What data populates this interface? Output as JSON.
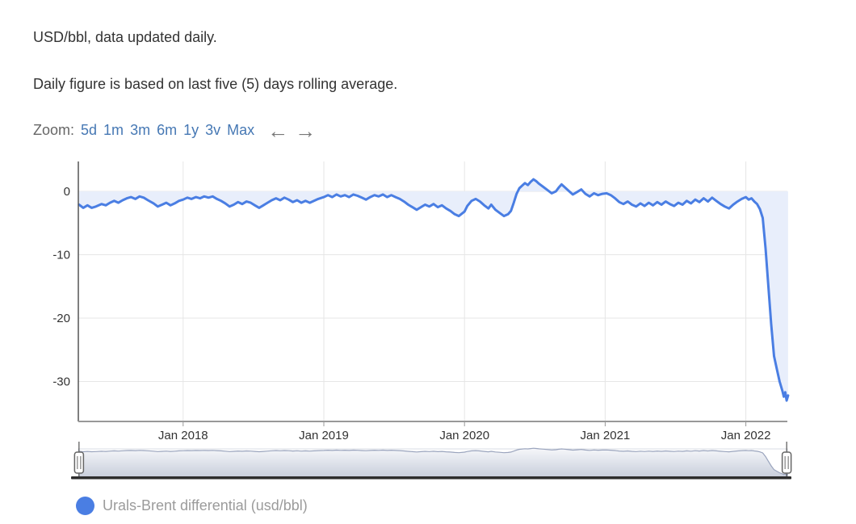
{
  "header": {
    "title": "USD/bbl, data updated daily.",
    "subtitle": "Daily figure is based on last five (5) days rolling average."
  },
  "range_selector": {
    "label": "Zoom:",
    "buttons": [
      "5d",
      "1m",
      "3m",
      "6m",
      "1y",
      "3v",
      "Max"
    ],
    "left_arrow": "←",
    "right_arrow": "→"
  },
  "legend": {
    "label": "Urals-Brent differential (usd/bbl)",
    "marker_color": "#4a7ee3"
  },
  "colors": {
    "line": "#4a7ee3",
    "area_fill": "#e8eefb",
    "grid": "#e6e6e6",
    "axis_x": "#999999",
    "axis_y": "#555555",
    "tick_text": "#333333",
    "navigator_line": "#9aa4bd",
    "navigator_fill_top": "#f6f7fa",
    "navigator_fill_bottom": "#c9cfdc",
    "navigator_bar": "#2d2d2d",
    "handle_stroke": "#666666"
  },
  "chart_data": {
    "type": "area",
    "title": "",
    "xlabel": "",
    "ylabel": "",
    "grid": true,
    "legend_position": "bottom",
    "x_unit": "decimal_year",
    "x_range": [
      2017.255,
      2022.295
    ],
    "y_range_visible": [
      -36.3,
      4.7
    ],
    "y_ticks": [
      0,
      -10,
      -20,
      -30
    ],
    "x_ticks": [
      {
        "label": "Jan 2018",
        "year": 2018
      },
      {
        "label": "Jan 2019",
        "year": 2019
      },
      {
        "label": "Jan 2020",
        "year": 2020
      },
      {
        "label": "Jan 2021",
        "year": 2021
      },
      {
        "label": "Jan 2022",
        "year": 2022
      }
    ],
    "series": [
      {
        "name": "Urals-Brent differential (usd/bbl)",
        "points": [
          [
            2017.26,
            -2.1
          ],
          [
            2017.29,
            -2.6
          ],
          [
            2017.32,
            -2.2
          ],
          [
            2017.35,
            -2.6
          ],
          [
            2017.38,
            -2.4
          ],
          [
            2017.42,
            -2.0
          ],
          [
            2017.45,
            -2.2
          ],
          [
            2017.48,
            -1.8
          ],
          [
            2017.51,
            -1.5
          ],
          [
            2017.54,
            -1.8
          ],
          [
            2017.57,
            -1.4
          ],
          [
            2017.6,
            -1.1
          ],
          [
            2017.63,
            -0.9
          ],
          [
            2017.66,
            -1.2
          ],
          [
            2017.69,
            -0.8
          ],
          [
            2017.72,
            -1.0
          ],
          [
            2017.75,
            -1.4
          ],
          [
            2017.79,
            -1.9
          ],
          [
            2017.82,
            -2.4
          ],
          [
            2017.85,
            -2.1
          ],
          [
            2017.88,
            -1.8
          ],
          [
            2017.91,
            -2.2
          ],
          [
            2017.94,
            -1.9
          ],
          [
            2017.97,
            -1.5
          ],
          [
            2018.0,
            -1.3
          ],
          [
            2018.03,
            -1.0
          ],
          [
            2018.06,
            -1.2
          ],
          [
            2018.09,
            -0.9
          ],
          [
            2018.12,
            -1.1
          ],
          [
            2018.15,
            -0.8
          ],
          [
            2018.18,
            -1.0
          ],
          [
            2018.21,
            -0.8
          ],
          [
            2018.24,
            -1.2
          ],
          [
            2018.27,
            -1.5
          ],
          [
            2018.3,
            -1.9
          ],
          [
            2018.33,
            -2.4
          ],
          [
            2018.36,
            -2.1
          ],
          [
            2018.39,
            -1.7
          ],
          [
            2018.42,
            -2.0
          ],
          [
            2018.45,
            -1.6
          ],
          [
            2018.48,
            -1.8
          ],
          [
            2018.51,
            -2.2
          ],
          [
            2018.54,
            -2.6
          ],
          [
            2018.57,
            -2.2
          ],
          [
            2018.6,
            -1.8
          ],
          [
            2018.63,
            -1.4
          ],
          [
            2018.66,
            -1.1
          ],
          [
            2018.69,
            -1.4
          ],
          [
            2018.72,
            -1.0
          ],
          [
            2018.75,
            -1.3
          ],
          [
            2018.78,
            -1.7
          ],
          [
            2018.81,
            -1.4
          ],
          [
            2018.84,
            -1.8
          ],
          [
            2018.87,
            -1.5
          ],
          [
            2018.9,
            -1.8
          ],
          [
            2018.93,
            -1.5
          ],
          [
            2018.96,
            -1.2
          ],
          [
            2019.0,
            -0.9
          ],
          [
            2019.03,
            -0.6
          ],
          [
            2019.06,
            -0.9
          ],
          [
            2019.09,
            -0.5
          ],
          [
            2019.12,
            -0.8
          ],
          [
            2019.15,
            -0.6
          ],
          [
            2019.18,
            -0.9
          ],
          [
            2019.21,
            -0.5
          ],
          [
            2019.24,
            -0.7
          ],
          [
            2019.27,
            -1.0
          ],
          [
            2019.3,
            -1.3
          ],
          [
            2019.33,
            -0.9
          ],
          [
            2019.36,
            -0.6
          ],
          [
            2019.39,
            -0.8
          ],
          [
            2019.42,
            -0.5
          ],
          [
            2019.45,
            -0.9
          ],
          [
            2019.48,
            -0.6
          ],
          [
            2019.51,
            -0.9
          ],
          [
            2019.54,
            -1.2
          ],
          [
            2019.57,
            -1.6
          ],
          [
            2019.6,
            -2.1
          ],
          [
            2019.63,
            -2.5
          ],
          [
            2019.66,
            -2.9
          ],
          [
            2019.69,
            -2.5
          ],
          [
            2019.72,
            -2.1
          ],
          [
            2019.75,
            -2.4
          ],
          [
            2019.78,
            -2.0
          ],
          [
            2019.81,
            -2.5
          ],
          [
            2019.84,
            -2.2
          ],
          [
            2019.87,
            -2.7
          ],
          [
            2019.9,
            -3.1
          ],
          [
            2019.93,
            -3.6
          ],
          [
            2019.96,
            -3.9
          ],
          [
            2020.0,
            -3.2
          ],
          [
            2020.02,
            -2.3
          ],
          [
            2020.05,
            -1.5
          ],
          [
            2020.08,
            -1.2
          ],
          [
            2020.11,
            -1.6
          ],
          [
            2020.14,
            -2.2
          ],
          [
            2020.17,
            -2.7
          ],
          [
            2020.19,
            -2.1
          ],
          [
            2020.22,
            -2.9
          ],
          [
            2020.25,
            -3.4
          ],
          [
            2020.28,
            -3.9
          ],
          [
            2020.31,
            -3.6
          ],
          [
            2020.33,
            -3.1
          ],
          [
            2020.35,
            -1.8
          ],
          [
            2020.37,
            -0.4
          ],
          [
            2020.39,
            0.5
          ],
          [
            2020.41,
            0.9
          ],
          [
            2020.43,
            1.3
          ],
          [
            2020.45,
            1.0
          ],
          [
            2020.47,
            1.5
          ],
          [
            2020.49,
            1.9
          ],
          [
            2020.51,
            1.6
          ],
          [
            2020.53,
            1.2
          ],
          [
            2020.56,
            0.7
          ],
          [
            2020.59,
            0.2
          ],
          [
            2020.62,
            -0.3
          ],
          [
            2020.65,
            0.0
          ],
          [
            2020.67,
            0.6
          ],
          [
            2020.69,
            1.1
          ],
          [
            2020.71,
            0.7
          ],
          [
            2020.74,
            0.1
          ],
          [
            2020.77,
            -0.5
          ],
          [
            2020.8,
            -0.1
          ],
          [
            2020.83,
            0.3
          ],
          [
            2020.86,
            -0.4
          ],
          [
            2020.89,
            -0.8
          ],
          [
            2020.92,
            -0.3
          ],
          [
            2020.95,
            -0.6
          ],
          [
            2020.98,
            -0.4
          ],
          [
            2021.01,
            -0.3
          ],
          [
            2021.04,
            -0.6
          ],
          [
            2021.07,
            -1.1
          ],
          [
            2021.1,
            -1.7
          ],
          [
            2021.13,
            -2.0
          ],
          [
            2021.16,
            -1.6
          ],
          [
            2021.19,
            -2.1
          ],
          [
            2021.22,
            -2.4
          ],
          [
            2021.25,
            -1.9
          ],
          [
            2021.28,
            -2.3
          ],
          [
            2021.31,
            -1.8
          ],
          [
            2021.34,
            -2.2
          ],
          [
            2021.37,
            -1.7
          ],
          [
            2021.4,
            -2.1
          ],
          [
            2021.43,
            -1.6
          ],
          [
            2021.46,
            -2.0
          ],
          [
            2021.49,
            -2.3
          ],
          [
            2021.52,
            -1.8
          ],
          [
            2021.55,
            -2.1
          ],
          [
            2021.58,
            -1.5
          ],
          [
            2021.61,
            -1.9
          ],
          [
            2021.64,
            -1.3
          ],
          [
            2021.67,
            -1.7
          ],
          [
            2021.7,
            -1.1
          ],
          [
            2021.73,
            -1.6
          ],
          [
            2021.76,
            -1.0
          ],
          [
            2021.79,
            -1.5
          ],
          [
            2021.82,
            -2.0
          ],
          [
            2021.85,
            -2.4
          ],
          [
            2021.88,
            -2.7
          ],
          [
            2021.91,
            -2.1
          ],
          [
            2021.94,
            -1.6
          ],
          [
            2021.97,
            -1.2
          ],
          [
            2022.0,
            -0.9
          ],
          [
            2022.02,
            -1.3
          ],
          [
            2022.04,
            -1.1
          ],
          [
            2022.06,
            -1.6
          ],
          [
            2022.08,
            -2.0
          ],
          [
            2022.1,
            -2.8
          ],
          [
            2022.12,
            -4.2
          ],
          [
            2022.14,
            -9.0
          ],
          [
            2022.16,
            -15.0
          ],
          [
            2022.18,
            -21.0
          ],
          [
            2022.2,
            -26.0
          ],
          [
            2022.22,
            -28.0
          ],
          [
            2022.24,
            -30.0
          ],
          [
            2022.26,
            -31.5
          ],
          [
            2022.27,
            -32.4
          ],
          [
            2022.28,
            -31.7
          ],
          [
            2022.29,
            -33.0
          ],
          [
            2022.3,
            -32.2
          ]
        ]
      }
    ],
    "navigator": {
      "present": true,
      "left_handle_year": 2017.26,
      "right_handle_year": 2022.29
    }
  }
}
